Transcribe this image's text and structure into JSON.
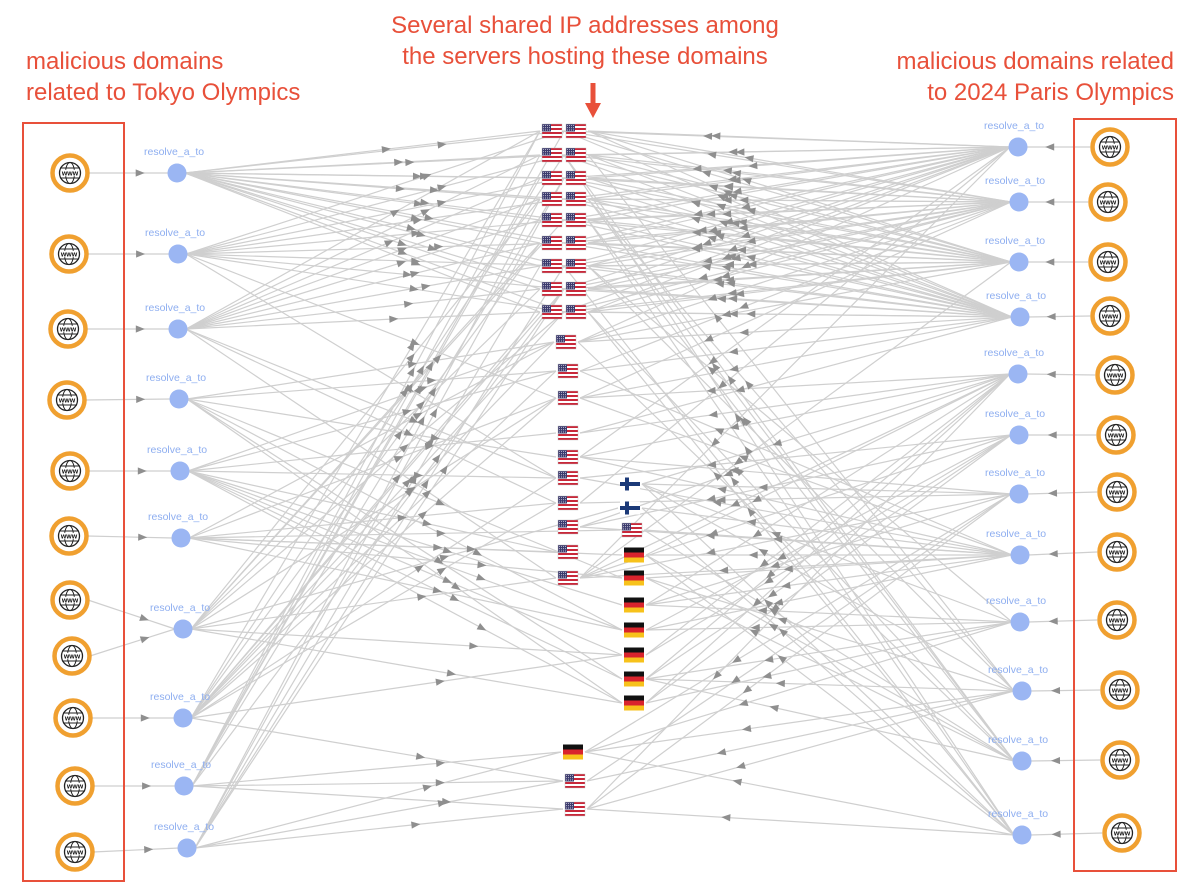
{
  "annotations": {
    "left_note": [
      "malicious domains",
      "related to Tokyo Olympics"
    ],
    "right_note": [
      "malicious domains related",
      "to 2024 Paris Olympics"
    ],
    "top_note": [
      "Several shared IP addresses among",
      "the servers hosting these domains"
    ]
  },
  "relation_label": "resolve_a_to",
  "domain_icon_text": "www",
  "colors": {
    "annotation": "#e8503a",
    "domain_ring": "#f0a030",
    "resolver_node": "#9bb6f3",
    "relation_label": "#8eaef0",
    "edge": "#cfcfcf",
    "arrowhead": "#8f8f8f"
  },
  "graph": {
    "left_domain_count": 11,
    "right_domain_count": 12,
    "left_resolver_count": 10,
    "right_resolver_count": 12,
    "ip_nodes": [
      {
        "country": "US",
        "count": 36
      },
      {
        "country": "FI",
        "count": 2
      },
      {
        "country": "DE",
        "count": 8
      }
    ]
  }
}
